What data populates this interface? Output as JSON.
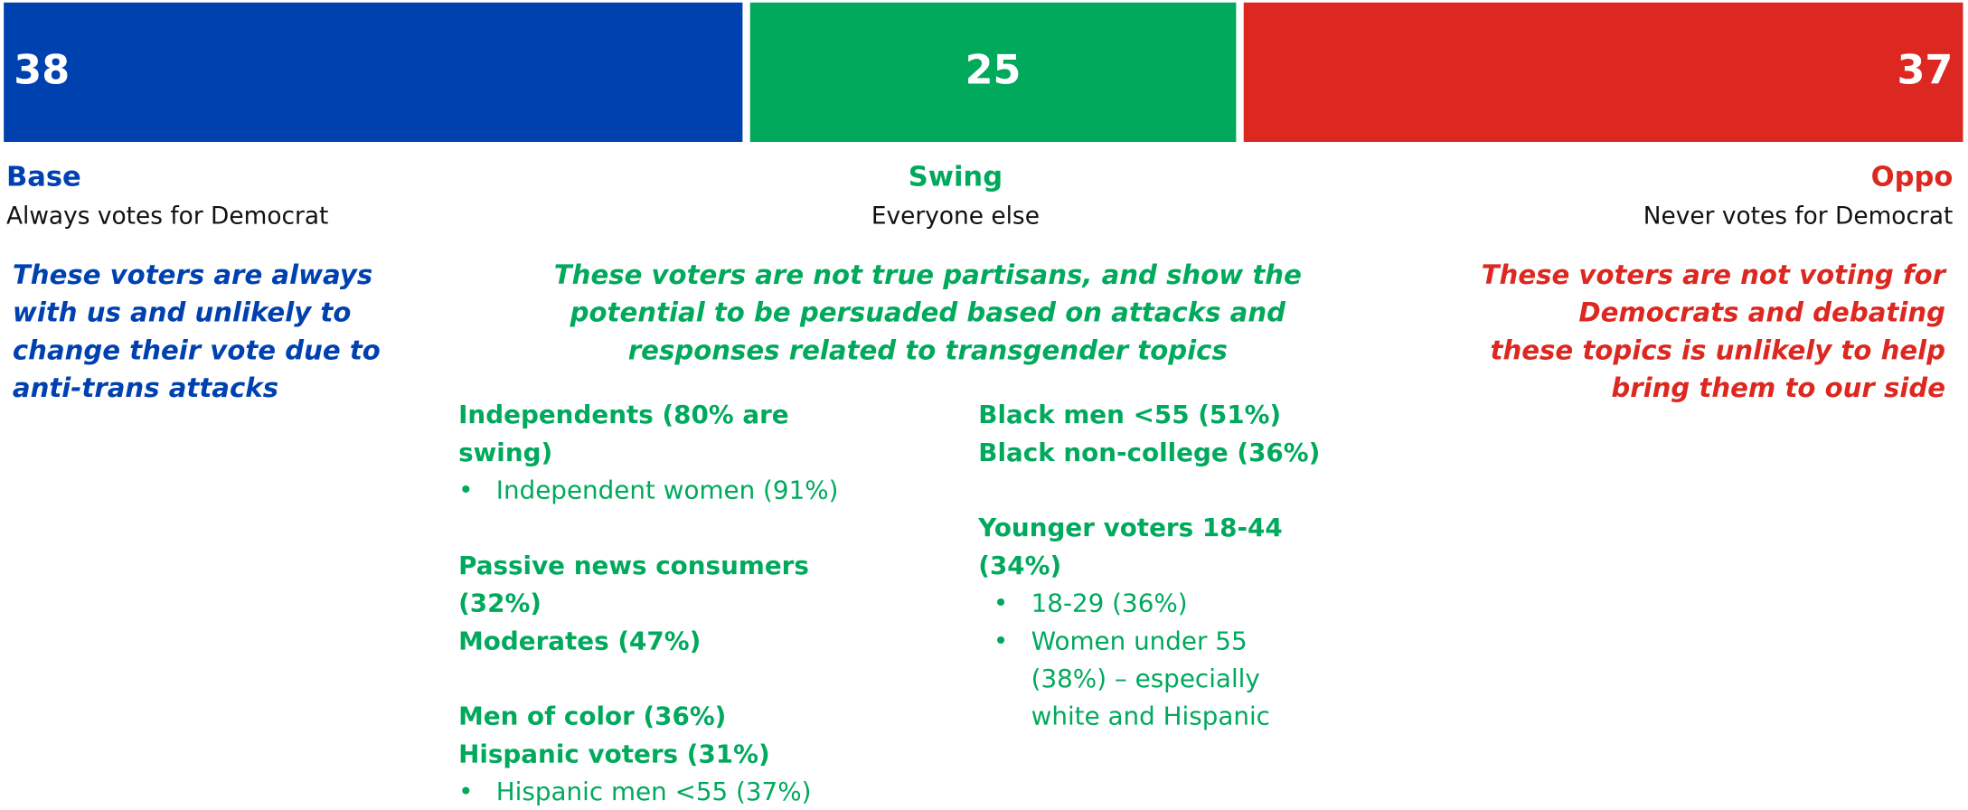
{
  "chart_data": {
    "type": "stacked_bar",
    "xlim": [
      0,
      100
    ],
    "series": [
      {
        "name": "Base",
        "color": "#0041b0",
        "values": [
          38
        ],
        "subtitle": "Always votes for Democrat",
        "description": [
          "These voters are always",
          "with us and unlikely to",
          "change their vote due to",
          "anti-trans attacks"
        ]
      },
      {
        "name": "Swing",
        "color": "#00a95c",
        "values": [
          25
        ],
        "subtitle": "Everyone else",
        "description": [
          "These voters are not true partisans, and show the",
          "potential to be persuaded based on attacks and",
          "responses related to transgender topics"
        ]
      },
      {
        "name": "Oppo",
        "color": "#dc2820",
        "values": [
          37
        ],
        "subtitle": "Never votes for Democrat",
        "description": [
          "These voters are not voting for",
          "Democrats and debating",
          "these topics is unlikely to help",
          "bring them to our side"
        ]
      }
    ],
    "swing_groups": [
      [
        [
          {
            "text": "Independents (80% are",
            "style": "heading"
          },
          {
            "text": "swing)",
            "style": "heading"
          },
          {
            "text": "Independent women (91%)",
            "style": "bullet"
          }
        ],
        [
          {
            "text": "Passive news consumers",
            "style": "heading"
          },
          {
            "text": "(32%)",
            "style": "heading"
          },
          {
            "text": "Moderates (47%)",
            "style": "heading"
          }
        ],
        [
          {
            "text": "Men of color (36%)",
            "style": "heading"
          },
          {
            "text": "Hispanic voters (31%)",
            "style": "heading"
          },
          {
            "text": "Hispanic men <55 (37%)",
            "style": "bullet"
          }
        ]
      ],
      [
        [
          {
            "text": "Black men <55 (51%)",
            "style": "heading"
          },
          {
            "text": "Black non-college (36%)",
            "style": "heading"
          }
        ],
        [
          {
            "text": "Younger voters 18-44",
            "style": "heading"
          },
          {
            "text": "(34%)",
            "style": "heading"
          },
          {
            "text": "18-29 (36%)",
            "style": "bullet"
          },
          {
            "text": "Women under 55",
            "style": "bullet"
          },
          {
            "text": "(38%) – especially",
            "style": "indent"
          },
          {
            "text": "white and Hispanic",
            "style": "indent"
          }
        ]
      ]
    ]
  }
}
